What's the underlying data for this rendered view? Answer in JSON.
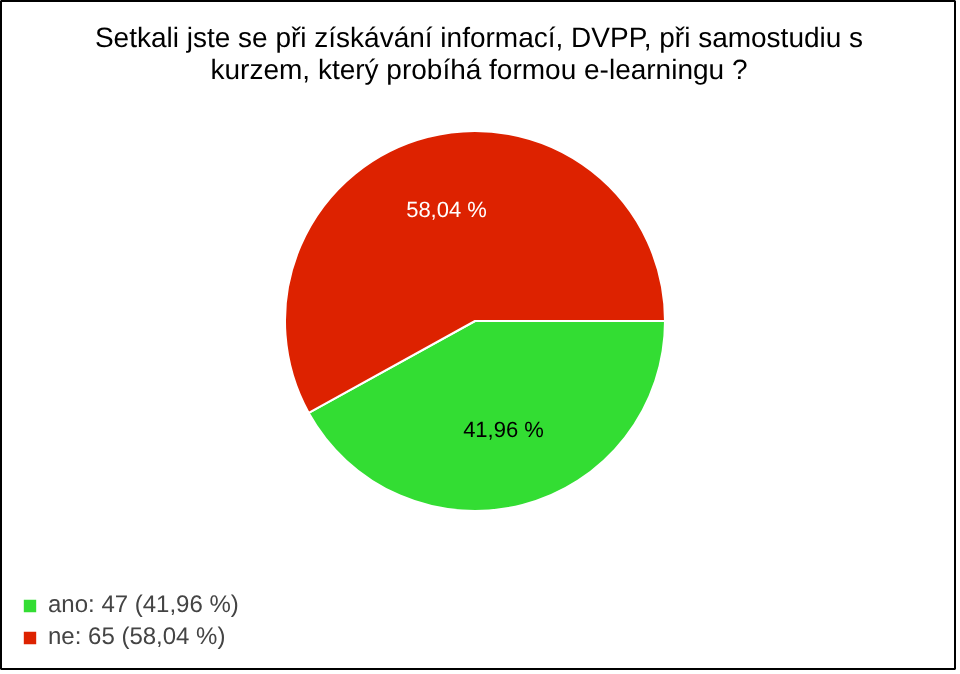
{
  "chart_data": {
    "type": "pie",
    "title": "Setkali jste se při získávání informací, DVPP, při samostudiu s kurzem, který probíhá formou e-learningu ?",
    "categories": [
      "ano: 47 (41,96 %)",
      "ne: 65 (58,04 %)"
    ],
    "values": [
      41.96,
      58.04
    ],
    "colors": [
      "#33dd33",
      "#dd2200"
    ],
    "value_labels": [
      "41,96 %",
      "58,04 %"
    ],
    "legend": "bottom left"
  }
}
